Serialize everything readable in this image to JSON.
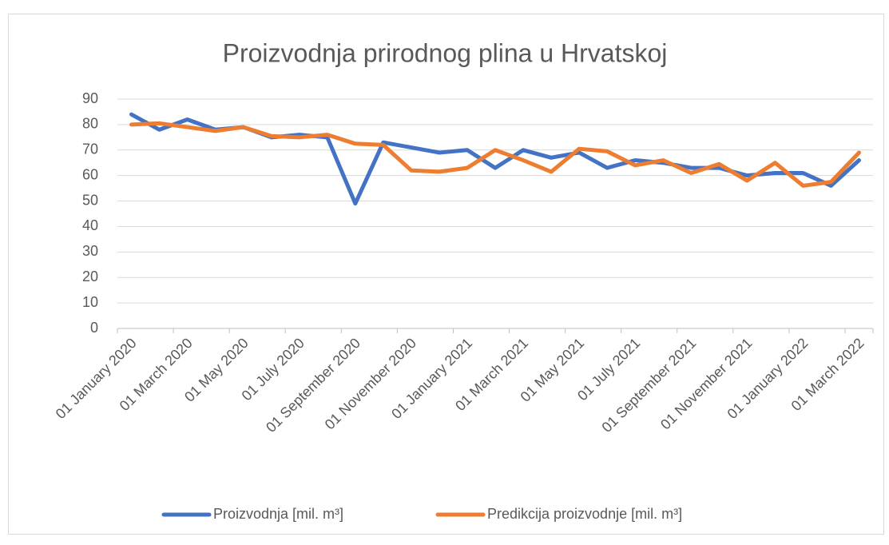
{
  "chart_data": {
    "type": "line",
    "title": "Proizvodnja prirodnog plina u Hrvatskoj",
    "categories": [
      "01 January 2020",
      null,
      "01 March 2020",
      null,
      "01 May 2020",
      null,
      "01 July 2020",
      null,
      "01 September 2020",
      null,
      "01 November 2020",
      null,
      "01 January 2021",
      null,
      "01 March 2021",
      null,
      "01 May 2021",
      null,
      "01 July 2021",
      null,
      "01 September 2021",
      null,
      "01 November 2021",
      null,
      "01 January 2022",
      null,
      "01 March 2022"
    ],
    "series": [
      {
        "name": "Proizvodnja [mil. m³]",
        "color": "#4472c4",
        "values": [
          84,
          78,
          82,
          78,
          79,
          75,
          76,
          75,
          49,
          73,
          71,
          69,
          70,
          63,
          70,
          67,
          69,
          63,
          66,
          65,
          63,
          63,
          60,
          61,
          61,
          56,
          66
        ]
      },
      {
        "name": "Predikcija proizvodnje [mil. m³]",
        "color": "#ed7d31",
        "values": [
          80,
          80.5,
          79,
          77.5,
          79,
          75.5,
          75,
          76,
          72.5,
          72,
          62,
          61.5,
          63,
          70,
          66,
          61.5,
          70.5,
          69.5,
          64,
          66,
          61,
          64.5,
          58,
          65,
          56,
          57.5,
          69
        ]
      }
    ],
    "ylim": [
      0,
      90
    ],
    "yticks": [
      0,
      10,
      20,
      30,
      40,
      50,
      60,
      70,
      80,
      90
    ],
    "grid": true,
    "legend": "bottom"
  }
}
